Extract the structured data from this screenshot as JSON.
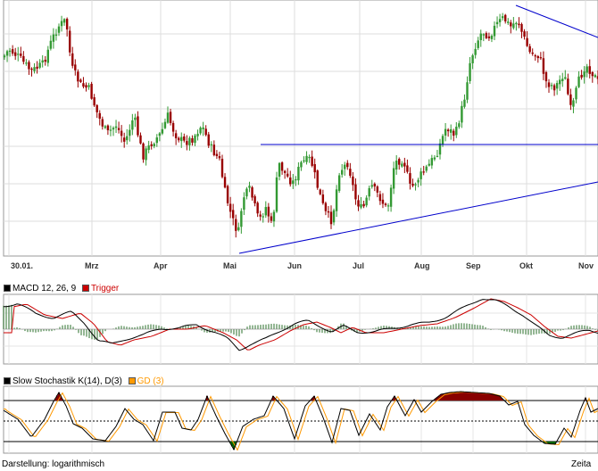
{
  "chart_data": {
    "type": "candlestick",
    "scale": "logarithmisch",
    "x_tick_labels": [
      "30.01.",
      "Mrz",
      "Apr",
      "Mai",
      "Jun",
      "Jul",
      "Aug",
      "Sep",
      "Okt",
      "Nov"
    ],
    "trendlines": [
      "descending-resistance",
      "horizontal-resistance",
      "ascending-support"
    ],
    "indicators": {
      "macd": {
        "label": "MACD 12, 26, 9",
        "trigger_label": "Trigger",
        "macd_color": "#000000",
        "trigger_color": "#cc0000",
        "histogram_color": "#669966"
      },
      "stochastic": {
        "label": "Slow Stochastik K(14), D(3)",
        "gd_label": "GD (3)",
        "k_color": "#000000",
        "d_color": "#ff9900",
        "overbought_fill": "#880000",
        "oversold_fill": "#006600"
      }
    },
    "up_color": "#339933",
    "down_color": "#990000",
    "grid": true
  },
  "footer": {
    "darstellung": "Darstellung: logarithmisch",
    "zeitachse": "Zeita"
  }
}
